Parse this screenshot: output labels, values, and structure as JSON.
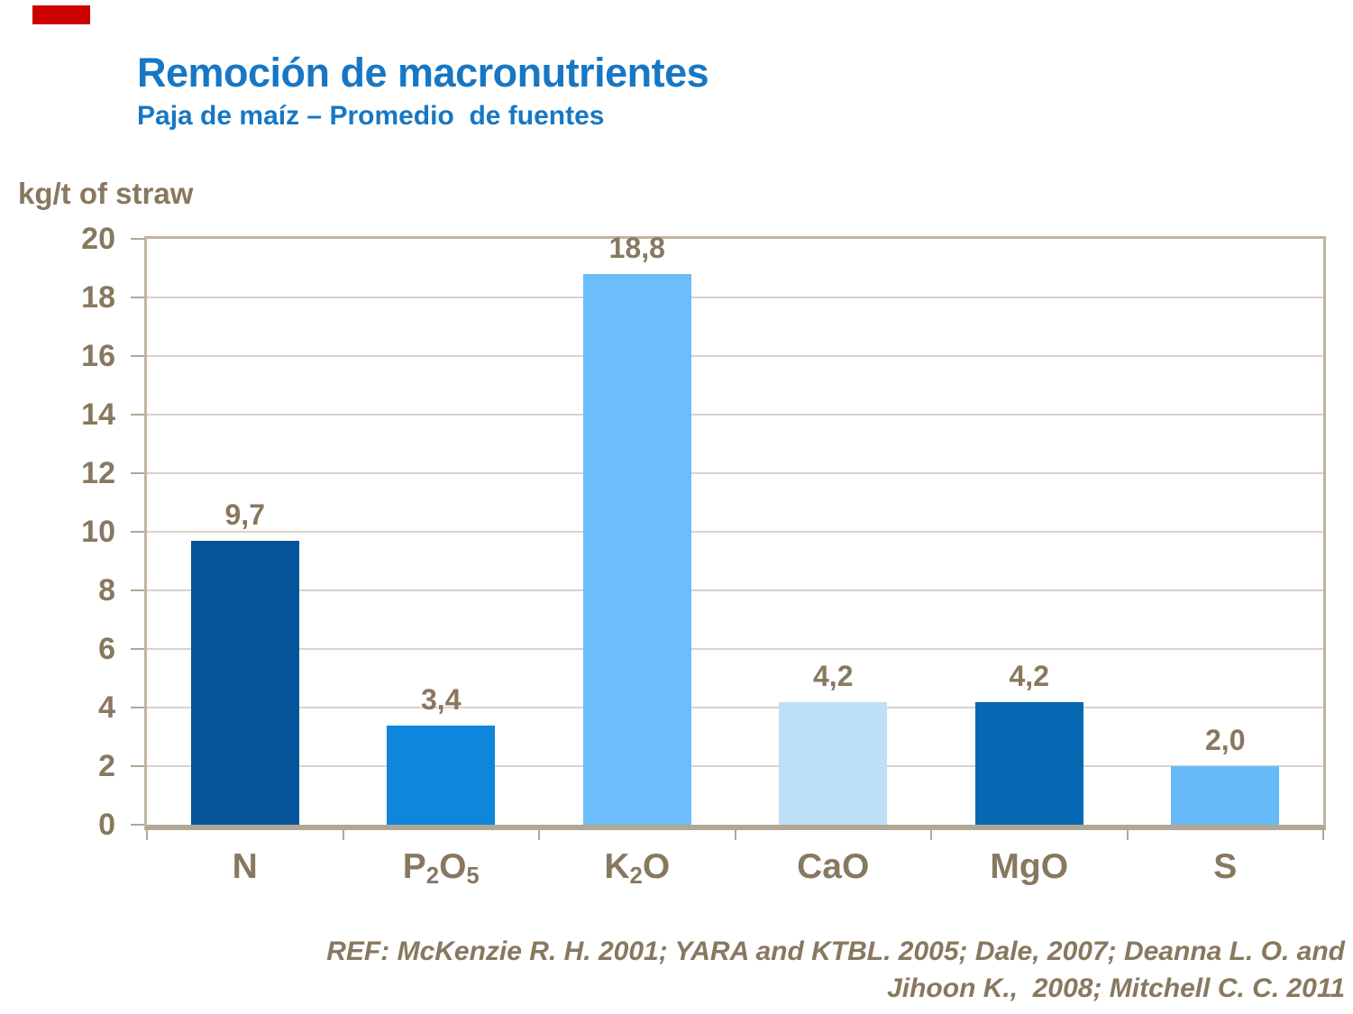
{
  "slide": {
    "title": "Remoción de macronutrientes",
    "subtitle": "Paja de maíz – Promedio  de fuentes",
    "footer_line1": "REF: McKenzie R. H. 2001; YARA and KTBL. 2005; Dale, 2007; Deanna L. O. and",
    "footer_line2": "Jihoon K.,  2008; Mitchell C. C. 2011",
    "title_color": "#1777C4",
    "accent_color": "#CC0000"
  },
  "chart_data": {
    "type": "bar",
    "title": "",
    "xlabel": "",
    "ylabel": "kg/t of straw",
    "categories": [
      "N",
      "P2O5",
      "K2O",
      "CaO",
      "MgO",
      "S"
    ],
    "values": [
      9.7,
      3.4,
      18.8,
      4.2,
      4.2,
      2.0
    ],
    "value_labels": [
      "9,7",
      "3,4",
      "18,8",
      "4,2",
      "4,2",
      "2,0"
    ],
    "bar_colors": [
      "#06559B",
      "#0D86DB",
      "#6CBEFB",
      "#BEDFF8",
      "#0768B4",
      "#66BAF8"
    ],
    "category_label_parts": [
      [
        {
          "t": "N"
        }
      ],
      [
        {
          "t": "P"
        },
        {
          "t": "2",
          "sub": true
        },
        {
          "t": "O"
        },
        {
          "t": "5",
          "sub": true
        }
      ],
      [
        {
          "t": "K"
        },
        {
          "t": "2",
          "sub": true
        },
        {
          "t": "O"
        }
      ],
      [
        {
          "t": "CaO"
        }
      ],
      [
        {
          "t": "MgO"
        }
      ],
      [
        {
          "t": "S"
        }
      ]
    ],
    "ylim": [
      0,
      20
    ],
    "ytick_step": 2,
    "ytick_labels": [
      "0",
      "2",
      "4",
      "6",
      "8",
      "10",
      "12",
      "14",
      "16",
      "18",
      "20"
    ],
    "grid": true,
    "legend": false,
    "colors": {
      "axis_text": "#87785F",
      "gridline": "#D9D3C7",
      "frame": "#BFB5A3",
      "axis_line": "#B2A795"
    }
  }
}
